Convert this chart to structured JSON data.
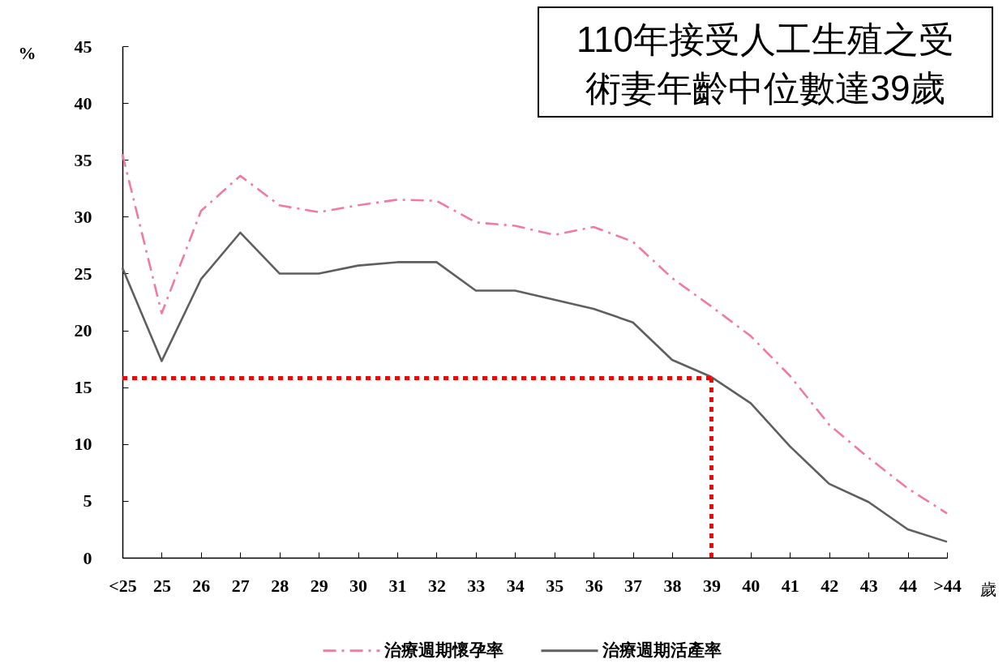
{
  "chart_data": {
    "type": "line",
    "categories": [
      "<25",
      "25",
      "26",
      "27",
      "28",
      "29",
      "30",
      "31",
      "32",
      "33",
      "34",
      "35",
      "36",
      "37",
      "38",
      "39",
      "40",
      "41",
      "42",
      "43",
      "44",
      ">44"
    ],
    "series": [
      {
        "name": "治療週期懷孕率",
        "color": "#f27aa0",
        "line_style": "dashed",
        "values": [
          35.5,
          21.5,
          30.5,
          33.6,
          31.0,
          30.4,
          31.0,
          31.5,
          31.4,
          29.5,
          29.2,
          28.4,
          29.1,
          27.8,
          24.6,
          22.1,
          19.5,
          16.0,
          11.7,
          8.8,
          6.1,
          3.9
        ]
      },
      {
        "name": "治療週期活產率",
        "color": "#5f5f5f",
        "line_style": "solid",
        "values": [
          25.5,
          17.3,
          24.5,
          28.6,
          25.0,
          25.0,
          25.7,
          26.0,
          26.0,
          23.5,
          23.5,
          22.7,
          21.9,
          20.7,
          17.4,
          15.9,
          13.6,
          9.8,
          6.5,
          4.9,
          2.5,
          1.4
        ]
      }
    ],
    "xlabel": "歲",
    "ylabel": "%",
    "ylim": [
      0,
      45
    ],
    "yticks": [
      0,
      5,
      10,
      15,
      20,
      25,
      30,
      35,
      40,
      45
    ],
    "legend": "bottom",
    "ref_lines": [
      {
        "axis": "y",
        "value": 15.8,
        "color": "#ff0000",
        "line_style": "dotted"
      },
      {
        "axis": "x",
        "value": "39",
        "color": "#ff0000",
        "line_style": "dotted"
      }
    ],
    "annotations": [
      "110年接受人工生殖之受術妻年齡中位數達39歲"
    ]
  }
}
